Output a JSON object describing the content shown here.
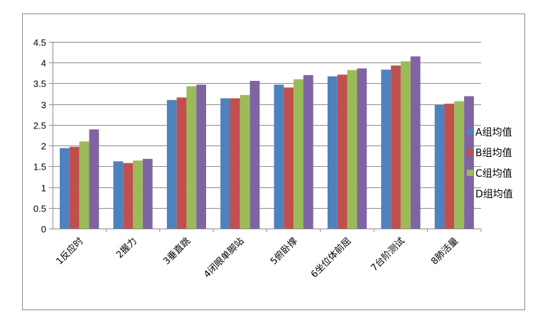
{
  "chart_data": {
    "type": "bar",
    "title": "",
    "xlabel": "",
    "ylabel": "",
    "ylim": [
      0,
      4.5
    ],
    "ytick_step": 0.5,
    "yticks": [
      "0",
      "0.5",
      "1",
      "1.5",
      "2",
      "2.5",
      "3",
      "3.5",
      "4",
      "4.5"
    ],
    "grid": true,
    "legend_position": "right",
    "categories": [
      "1反应时",
      "2握力",
      "3垂直跳",
      "4闭眼单脚站",
      "5俯卧撑",
      "6坐位体前屈",
      "7台阶测试",
      "8肺活量"
    ],
    "series": [
      {
        "name": "A组均值",
        "color": "#4f81bd",
        "values": [
          1.94,
          1.62,
          3.1,
          3.14,
          3.47,
          3.67,
          3.83,
          2.98
        ]
      },
      {
        "name": "B组均值",
        "color": "#c0504d",
        "values": [
          1.97,
          1.58,
          3.16,
          3.14,
          3.4,
          3.71,
          3.93,
          3.01
        ]
      },
      {
        "name": "C组均值",
        "color": "#9bbb59",
        "values": [
          2.1,
          1.64,
          3.43,
          3.22,
          3.6,
          3.82,
          4.03,
          3.07
        ]
      },
      {
        "name": "D组均值",
        "color": "#8064a2",
        "values": [
          2.39,
          1.68,
          3.47,
          3.56,
          3.7,
          3.86,
          4.15,
          3.19
        ]
      }
    ]
  }
}
